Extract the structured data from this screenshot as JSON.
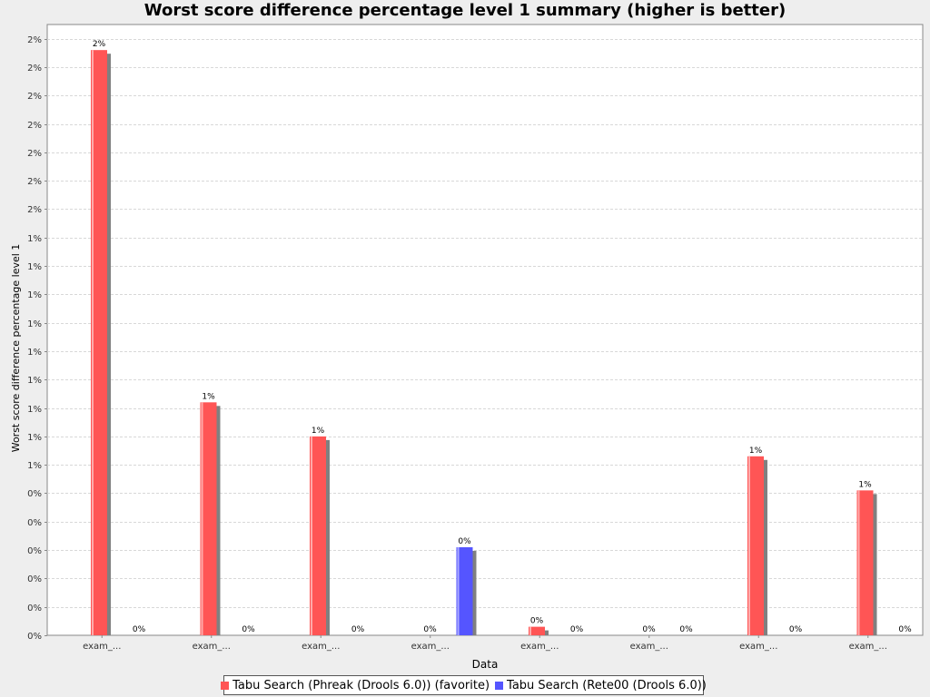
{
  "chart_data": {
    "type": "bar",
    "title": "Worst score difference percentage level 1 summary (higher is better)",
    "xlabel": "Data",
    "ylabel": "Worst score difference percentage level 1",
    "categories": [
      "exam_...",
      "exam_...",
      "exam_...",
      "exam_...",
      "exam_...",
      "exam_...",
      "exam_...",
      "exam_..."
    ],
    "ylim": [
      0,
      0.0215
    ],
    "y_ticks": [
      0,
      0.001,
      0.002,
      0.003,
      0.004,
      0.005,
      0.006,
      0.007,
      0.008,
      0.009,
      0.01,
      0.011,
      0.012,
      0.013,
      0.014,
      0.015,
      0.016,
      0.017,
      0.018,
      0.019,
      0.02,
      0.021
    ],
    "y_tick_labels": [
      "0%",
      "0%",
      "0%",
      "0%",
      "0%",
      "0%",
      "1%",
      "1%",
      "1%",
      "1%",
      "1%",
      "1%",
      "1%",
      "1%",
      "1%",
      "2%",
      "2%",
      "2%",
      "2%",
      "2%",
      "2%",
      "2%"
    ],
    "grid": true,
    "legend_position": "bottom",
    "series": [
      {
        "name": "Tabu Search (Phreak (Drools 6.0)) (favorite)",
        "color": "#ff5555",
        "values": [
          0.0206,
          0.0082,
          0.007,
          0,
          0.0003,
          0,
          0.0063,
          0.0051
        ],
        "labels": [
          "2%",
          "1%",
          "1%",
          "0%",
          "0%",
          "0%",
          "1%",
          "1%"
        ]
      },
      {
        "name": "Tabu Search (Rete00 (Drools 6.0))",
        "color": "#5555ff",
        "values": [
          0,
          0,
          0,
          0.0031,
          0,
          0,
          0,
          0
        ],
        "labels": [
          "0%",
          "0%",
          "0%",
          "0%",
          "0%",
          "0%",
          "0%",
          "0%"
        ]
      }
    ]
  }
}
